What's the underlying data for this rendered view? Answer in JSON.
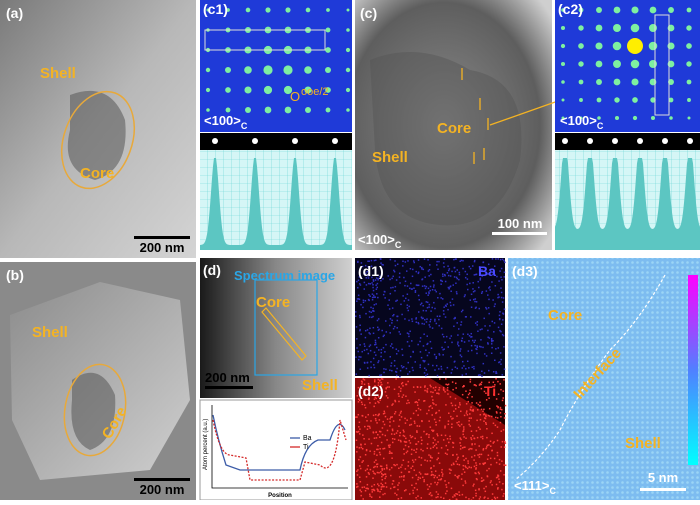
{
  "panels": {
    "a": {
      "label": "(a)",
      "shell": "Shell",
      "core": "Core",
      "scale": "200 nm"
    },
    "b": {
      "label": "(b)",
      "shell": "Shell",
      "core": "Core",
      "scale": "200 nm"
    },
    "c1": {
      "label": "(c1)",
      "spot": "O",
      "spot_index": "ooe/2",
      "zone": {
        "main": "<100>",
        "sub": "C"
      }
    },
    "c": {
      "label": "(c)",
      "core": "Core",
      "shell": "Shell",
      "zone": {
        "main": "<100>",
        "sub": "C"
      },
      "scale": "100 nm"
    },
    "c2": {
      "label": "(c2)",
      "zone": {
        "main": "<100>",
        "sub": "C"
      }
    },
    "d": {
      "label": "(d)",
      "spectrum": "Spectrum image",
      "core": "Core",
      "shell": "Shell",
      "scale": "200 nm",
      "plot": {
        "ylabel": "Atom percent (a.u.)",
        "xlabel": "Position",
        "legend": [
          "Ba",
          "Ti"
        ]
      }
    },
    "d1": {
      "label": "(d1)",
      "element": "Ba"
    },
    "d2": {
      "label": "(d2)",
      "element": "Ti"
    },
    "d3": {
      "label": "(d3)",
      "core": "Core",
      "interface": "Interface",
      "shell": "Shell",
      "zone": {
        "main": "<111>",
        "sub": "C"
      },
      "scale": "5 nm"
    }
  }
}
